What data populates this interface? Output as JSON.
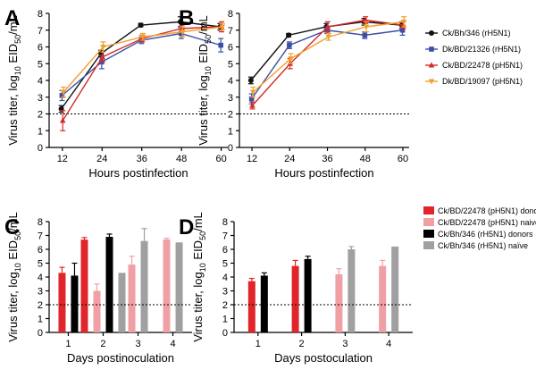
{
  "colors": {
    "ck_bh_346": "#111111",
    "dk_bd_21326": "#3b4fa8",
    "ck_bd_22478": "#d42a2a",
    "dk_bd_19097": "#f0a030",
    "donor_p": "#e0262a",
    "naive_p": "#f0a0a4",
    "donor_r": "#000000",
    "naive_r": "#a0a0a0"
  },
  "shared_ylabel": {
    "main": "Virus titer, log",
    "sub1": "10",
    "mid": " EID",
    "sub2": "50",
    "end": "/mL"
  },
  "legend_top": [
    {
      "label": "Ck/Bh/346 (rH5N1)",
      "color": "#111111",
      "marker": "circle"
    },
    {
      "label": "Dk/BD/21326 (rH5N1)",
      "color": "#3b4fa8",
      "marker": "square"
    },
    {
      "label": "Ck/BD/22478 (pH5N1)",
      "color": "#d42a2a",
      "marker": "triangle"
    },
    {
      "label": "Dk/BD/19097 (pH5N1)",
      "color": "#f0a030",
      "marker": "triangle-down"
    }
  ],
  "legend_bottom": [
    {
      "label": "Ck/BD/22478 (pH5N1) donors",
      "color": "#e0262a"
    },
    {
      "label": "Ck/BD/22478 (pH5N1) naive",
      "color": "#f0a0a4"
    },
    {
      "label": "Ck/Bh/346 (rH5N1) donors",
      "color": "#000000"
    },
    {
      "label": "Ck/Bh/346 (rH5N1) naïve",
      "color": "#a0a0a0"
    }
  ],
  "chart_data": [
    {
      "panel": "A",
      "type": "line",
      "xlabel": "Hours postinfection",
      "x": [
        12,
        24,
        36,
        48,
        60
      ],
      "xlim": [
        8,
        62
      ],
      "ylim": [
        0,
        8
      ],
      "yticks": [
        0,
        1,
        2,
        3,
        4,
        5,
        6,
        7,
        8
      ],
      "reference_line": 2,
      "series": [
        {
          "name": "Ck/Bh/346 (rH5N1)",
          "values": [
            2.3,
            5.6,
            7.3,
            7.5,
            7.2
          ],
          "errors": [
            0.2,
            0.2,
            0.1,
            0.3,
            0.2
          ]
        },
        {
          "name": "Dk/BD/21326 (rH5N1)",
          "values": [
            3.1,
            5.1,
            6.4,
            6.8,
            6.1
          ],
          "errors": [
            0.3,
            0.4,
            0.2,
            0.3,
            0.4
          ]
        },
        {
          "name": "Ck/BD/22478 (pH5N1)",
          "values": [
            1.6,
            5.4,
            6.5,
            7.1,
            7.2
          ],
          "errors": [
            0.6,
            0.3,
            0.2,
            0.2,
            0.3
          ]
        },
        {
          "name": "Dk/BD/19097 (pH5N1)",
          "values": [
            3.3,
            6.0,
            6.6,
            6.9,
            7.2
          ],
          "errors": [
            0.3,
            0.3,
            0.2,
            0.3,
            0.2
          ]
        }
      ]
    },
    {
      "panel": "B",
      "type": "line",
      "xlabel": "Hours postinfection",
      "x": [
        12,
        24,
        36,
        48,
        60
      ],
      "xlim": [
        8,
        62
      ],
      "ylim": [
        0,
        8
      ],
      "yticks": [
        0,
        1,
        2,
        3,
        4,
        5,
        6,
        7,
        8
      ],
      "reference_line": 2,
      "series": [
        {
          "name": "Ck/Bh/346 (rH5N1)",
          "values": [
            4.0,
            6.7,
            7.2,
            7.5,
            7.3
          ],
          "errors": [
            0.2,
            0.1,
            0.2,
            0.2,
            0.2
          ]
        },
        {
          "name": "Dk/BD/21326 (rH5N1)",
          "values": [
            2.9,
            6.1,
            7.0,
            6.7,
            7.0
          ],
          "errors": [
            0.3,
            0.2,
            0.2,
            0.2,
            0.3
          ]
        },
        {
          "name": "Ck/BD/22478 (pH5N1)",
          "values": [
            2.5,
            5.0,
            7.2,
            7.6,
            7.3
          ],
          "errors": [
            0.2,
            0.3,
            0.3,
            0.2,
            0.2
          ]
        },
        {
          "name": "Dk/BD/19097 (pH5N1)",
          "values": [
            3.3,
            5.3,
            6.6,
            7.2,
            7.5
          ],
          "errors": [
            0.3,
            0.3,
            0.2,
            0.3,
            0.3
          ]
        }
      ]
    },
    {
      "panel": "C",
      "type": "bar",
      "xlabel": "Days postinoculation",
      "categories": [
        "1",
        "2",
        "3",
        "4"
      ],
      "ylim": [
        0,
        8
      ],
      "yticks": [
        0,
        1,
        2,
        3,
        4,
        5,
        6,
        7,
        8
      ],
      "reference_line": 2,
      "series": [
        {
          "name": "Ck/BD/22478 (pH5N1) donors",
          "values": [
            4.3,
            6.7,
            null,
            null
          ],
          "errors": [
            0.4,
            0.15,
            null,
            null
          ]
        },
        {
          "name": "Ck/BD/22478 (pH5N1) naive",
          "values": [
            null,
            3.0,
            4.9,
            6.7
          ],
          "errors": [
            null,
            0.5,
            0.6,
            0.1
          ]
        },
        {
          "name": "Ck/Bh/346 (rH5N1) donors",
          "values": [
            4.1,
            6.9,
            null,
            null
          ],
          "errors": [
            0.9,
            0.2,
            null,
            null
          ]
        },
        {
          "name": "Ck/Bh/346 (rH5N1) naïve",
          "values": [
            null,
            4.3,
            6.6,
            6.5
          ],
          "errors": [
            null,
            0,
            0.9,
            0
          ]
        }
      ]
    },
    {
      "panel": "D",
      "type": "bar",
      "xlabel": "Days postoculation",
      "categories": [
        "1",
        "2",
        "3",
        "4"
      ],
      "ylim": [
        0,
        8
      ],
      "yticks": [
        0,
        1,
        2,
        3,
        4,
        5,
        6,
        7,
        8
      ],
      "reference_line": 2,
      "series": [
        {
          "name": "Ck/BD/22478 (pH5N1) donors",
          "values": [
            3.7,
            4.8,
            null,
            null
          ],
          "errors": [
            0.2,
            0.4,
            null,
            null
          ]
        },
        {
          "name": "Ck/BD/22478 (pH5N1) naive",
          "values": [
            null,
            null,
            4.2,
            4.8
          ],
          "errors": [
            null,
            null,
            0.4,
            0.4
          ]
        },
        {
          "name": "Ck/Bh/346 (rH5N1) donors",
          "values": [
            4.1,
            5.3,
            null,
            null
          ],
          "errors": [
            0.2,
            0.2,
            null,
            null
          ]
        },
        {
          "name": "Ck/Bh/346 (rH5N1) naïve",
          "values": [
            null,
            null,
            6.0,
            6.2
          ],
          "errors": [
            null,
            null,
            0.2,
            0
          ]
        }
      ]
    }
  ]
}
